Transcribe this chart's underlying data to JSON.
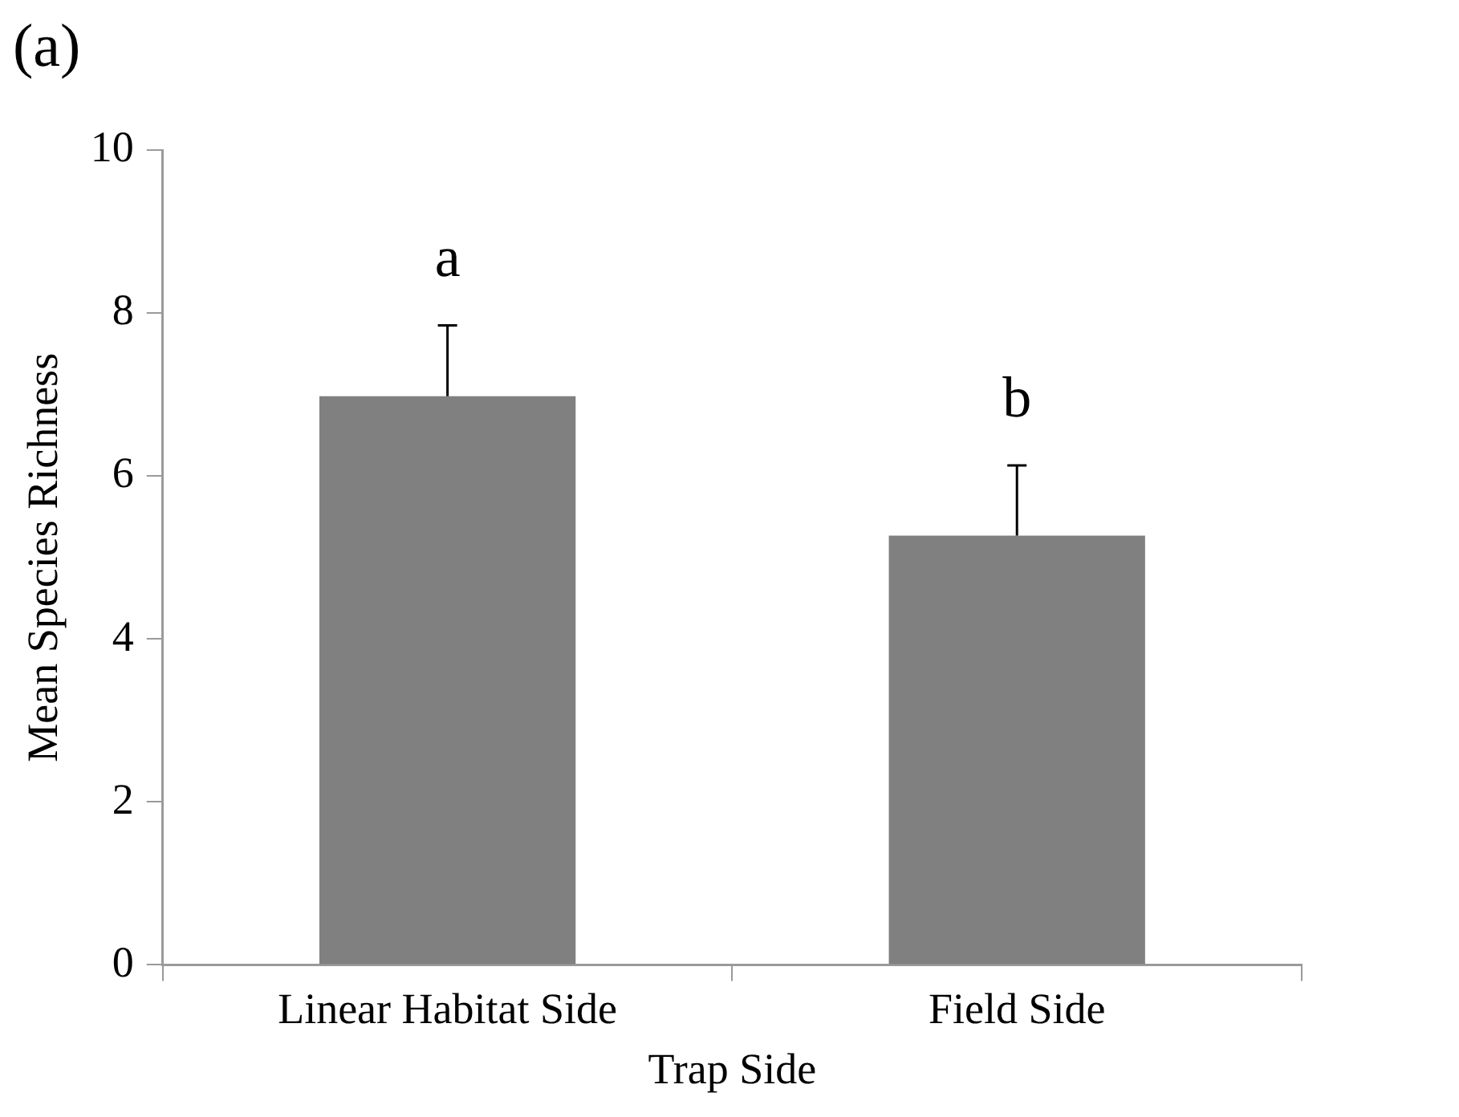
{
  "chart_data": {
    "type": "bar",
    "title": "(a)",
    "xlabel": "Trap Side",
    "ylabel": "Mean Species Richness",
    "categories": [
      "Linear Habitat Side",
      "Field Side"
    ],
    "values": [
      6.98,
      5.27
    ],
    "errors": [
      [
        6.98,
        7.85
      ],
      [
        5.27,
        6.13
      ]
    ],
    "color": "#808080",
    "ylim": [
      0,
      10
    ],
    "yticks": [
      0,
      2,
      4,
      6,
      8,
      10
    ],
    "grid": false,
    "legend": false,
    "annotations": [
      "a",
      "b"
    ]
  }
}
